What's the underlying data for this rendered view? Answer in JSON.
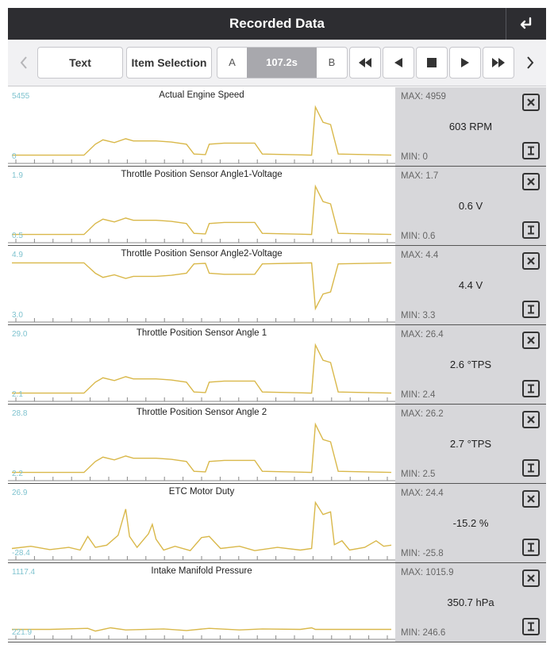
{
  "header": {
    "title": "Recorded Data"
  },
  "toolbar": {
    "text_label": "Text",
    "item_selection_label": "Item Selection",
    "marker_a": "A",
    "marker_b": "B",
    "time": "107.2s"
  },
  "signals": [
    {
      "name": "Actual Engine Speed",
      "axis_max": "5455",
      "axis_min": "0",
      "max": "MAX: 4959",
      "min": "MIN: 0",
      "value": "603 RPM"
    },
    {
      "name": "Throttle Position Sensor Angle1-Voltage",
      "axis_max": "1.9",
      "axis_min": "0.5",
      "max": "MAX: 1.7",
      "min": "MIN: 0.6",
      "value": "0.6 V"
    },
    {
      "name": "Throttle Position Sensor Angle2-Voltage",
      "axis_max": "4.9",
      "axis_min": "3.0",
      "max": "MAX: 4.4",
      "min": "MIN: 3.3",
      "value": "4.4 V"
    },
    {
      "name": "Throttle Position Sensor Angle 1",
      "axis_max": "29.0",
      "axis_min": "2.1",
      "max": "MAX: 26.4",
      "min": "MIN: 2.4",
      "value": "2.6 °TPS"
    },
    {
      "name": "Throttle Position Sensor Angle 2",
      "axis_max": "28.8",
      "axis_min": "2.2",
      "max": "MAX: 26.2",
      "min": "MIN: 2.5",
      "value": "2.7 °TPS"
    },
    {
      "name": "ETC Motor Duty",
      "axis_max": "26.9",
      "axis_min": "-28.4",
      "max": "MAX: 24.4",
      "min": "MIN: -25.8",
      "value": "-15.2 %"
    },
    {
      "name": "Intake Manifold Pressure",
      "axis_max": "1117.4",
      "axis_min": "221.9",
      "max": "MAX: 1015.9",
      "min": "MIN: 246.6",
      "value": "350.7 hPa"
    }
  ],
  "colors": {
    "trace": "#d9b84a",
    "axis_label": "#7fc3cf",
    "header_bg": "#2d2d31",
    "side_bg": "#d7d7da"
  },
  "icons": [
    "back-icon",
    "chevron-left-icon",
    "rewind-icon",
    "step-back-icon",
    "stop-icon",
    "play-icon",
    "fast-forward-icon",
    "chevron-right-icon",
    "close-icon",
    "detail-icon"
  ]
}
